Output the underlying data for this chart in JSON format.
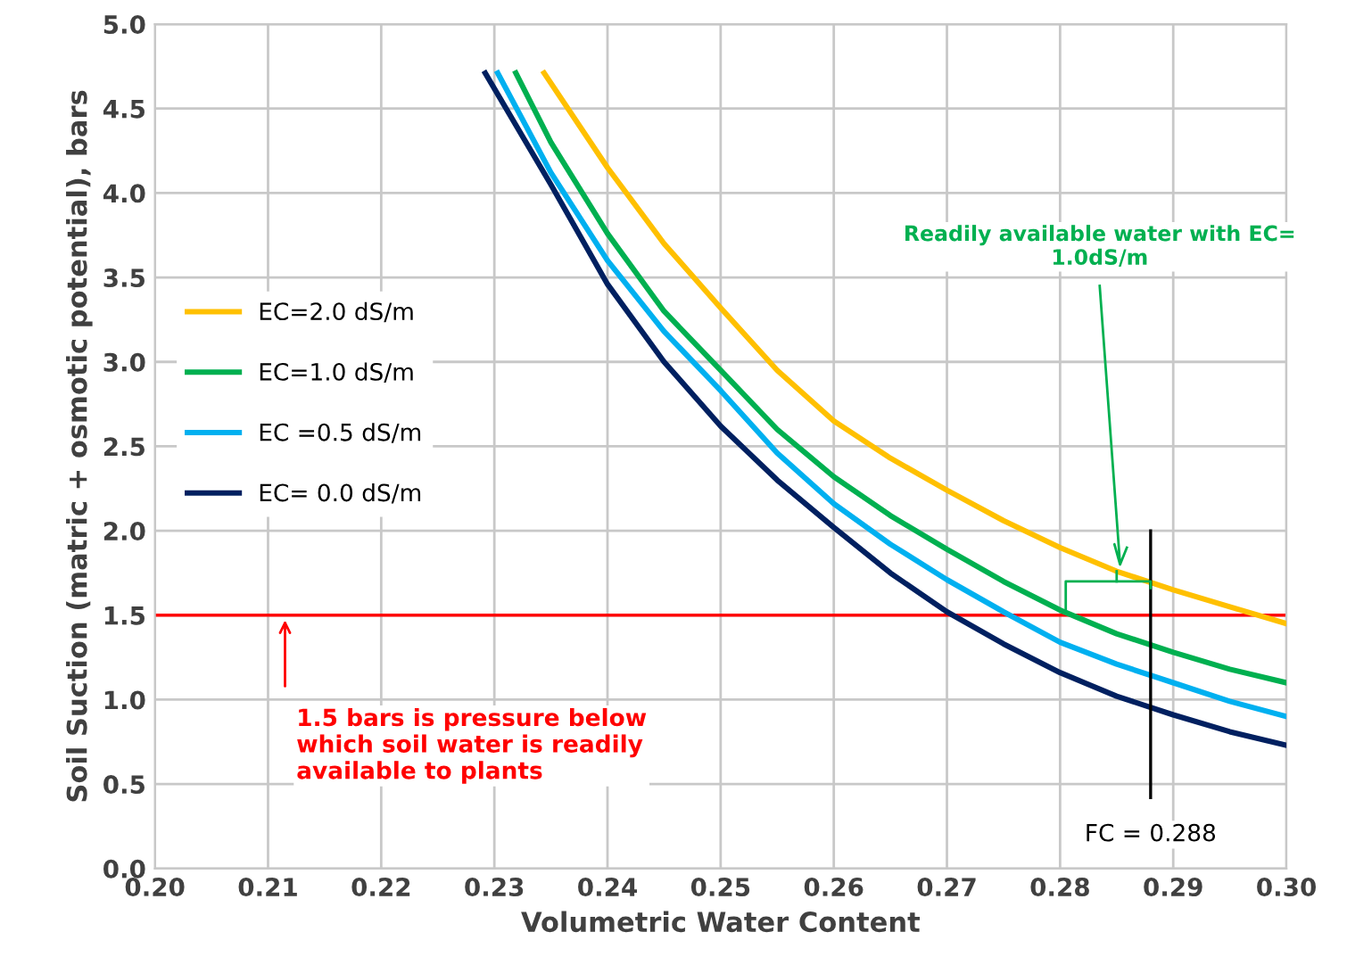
{
  "chart_data": {
    "type": "line",
    "xlabel": "Volumetric Water Content",
    "ylabel": "Soil Suction (matric + osmotic potential), bars",
    "xlim": [
      0.2,
      0.3
    ],
    "ylim": [
      0,
      5
    ],
    "xticks": [
      {
        "value": 0.2,
        "label": "0.20"
      },
      {
        "value": 0.21,
        "label": "0.21"
      },
      {
        "value": 0.22,
        "label": "0.22"
      },
      {
        "value": 0.23,
        "label": "0.23"
      },
      {
        "value": 0.24,
        "label": "0.24"
      },
      {
        "value": 0.25,
        "label": "0.25"
      },
      {
        "value": 0.26,
        "label": "0.26"
      },
      {
        "value": 0.27,
        "label": "0.27"
      },
      {
        "value": 0.28,
        "label": "0.28"
      },
      {
        "value": 0.29,
        "label": "0.29"
      },
      {
        "value": 0.3,
        "label": "0.30"
      }
    ],
    "yticks": [
      {
        "value": 0,
        "label": "0.0"
      },
      0.5,
      {
        "value": 1,
        "label": "1.0"
      },
      1.5,
      {
        "value": 2,
        "label": "2.0"
      },
      2.5,
      {
        "value": 3,
        "label": "3.0"
      },
      3.5,
      {
        "value": 4,
        "label": "4.0"
      },
      4.5,
      {
        "value": 5,
        "label": "5.0"
      }
    ],
    "grid": true,
    "legend": "left",
    "series": [
      {
        "name": "EC=2.0 dS/m",
        "color": "#ffc000",
        "x": [
          0.2344,
          0.24,
          0.245,
          0.25,
          0.255,
          0.26,
          0.265,
          0.27,
          0.275,
          0.28,
          0.285,
          0.29,
          0.295,
          0.3
        ],
        "values": [
          4.71,
          4.15,
          3.7,
          3.32,
          2.95,
          2.65,
          2.43,
          2.24,
          2.06,
          1.9,
          1.76,
          1.65,
          1.55,
          1.45
        ]
      },
      {
        "name": "EC=1.0 dS/m",
        "color": "#00b050",
        "x": [
          0.2319,
          0.235,
          0.24,
          0.245,
          0.25,
          0.255,
          0.26,
          0.265,
          0.27,
          0.275,
          0.28,
          0.285,
          0.29,
          0.295,
          0.3
        ],
        "values": [
          4.71,
          4.3,
          3.76,
          3.3,
          2.95,
          2.6,
          2.32,
          2.09,
          1.89,
          1.7,
          1.53,
          1.39,
          1.28,
          1.18,
          1.1
        ]
      },
      {
        "name": "EC =0.5 dS/m",
        "color": "#00b0f0",
        "x": [
          0.2303,
          0.235,
          0.24,
          0.245,
          0.25,
          0.255,
          0.26,
          0.265,
          0.27,
          0.275,
          0.28,
          0.285,
          0.29,
          0.295,
          0.3
        ],
        "values": [
          4.71,
          4.12,
          3.6,
          3.18,
          2.83,
          2.46,
          2.16,
          1.92,
          1.71,
          1.52,
          1.34,
          1.21,
          1.1,
          0.99,
          0.9
        ]
      },
      {
        "name": "EC= 0.0 dS/m",
        "color": "#002060",
        "x": [
          0.2292,
          0.235,
          0.24,
          0.245,
          0.25,
          0.255,
          0.26,
          0.265,
          0.27,
          0.275,
          0.28,
          0.285,
          0.29,
          0.295,
          0.3
        ],
        "values": [
          4.71,
          4.05,
          3.46,
          3.0,
          2.62,
          2.3,
          2.02,
          1.75,
          1.52,
          1.33,
          1.16,
          1.02,
          0.91,
          0.81,
          0.73
        ]
      },
      {
        "color": "#000000",
        "x": [
          0.288,
          0.288
        ],
        "values": [
          2.0,
          0.42
        ]
      }
    ],
    "ref_lines": [
      {
        "axis": "y",
        "value": 1.5,
        "color": "#ff0000"
      }
    ],
    "annotations": [
      {
        "text": "1.5 bars is pressure below\nwhich soil water is readily\navailable to plants",
        "x": 0.2115,
        "y": 1.5
      },
      "Readily available water with EC=\n1.0dS/m",
      "FC = 0.288"
    ]
  }
}
